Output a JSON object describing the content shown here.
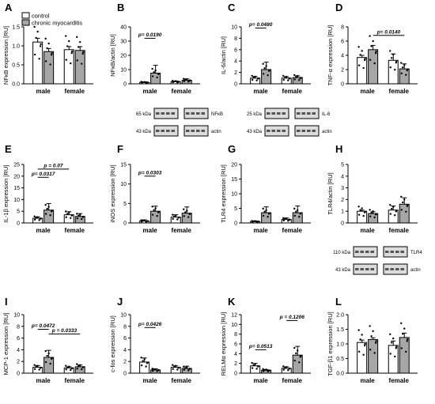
{
  "colors": {
    "control": "#ffffff",
    "myocarditis": "#a6a6a6",
    "stroke": "#000000",
    "blot_bg": "#dcdcdc",
    "blot_band": "#555555"
  },
  "legend": {
    "control": "control",
    "myocarditis": "chronic myocarditis"
  },
  "blot_labels": {
    "B": {
      "kda_top": "65 kDa",
      "kda_bottom": "43 kDa",
      "target": "NFκB",
      "loading": "actin"
    },
    "C": {
      "kda_top": "25 kDa",
      "kda_bottom": "43 kDa",
      "target": "IL-6",
      "loading": "actin"
    },
    "H": {
      "kda_top": "110 kDa",
      "kda_bottom": "43 kDa",
      "target": "TLR4",
      "loading": "actin"
    }
  },
  "chart_data": [
    {
      "panel": "A",
      "type": "bar",
      "ylabel": "NFκB expression [RU]",
      "ylim": [
        0,
        1.5
      ],
      "yticks": [
        "0.0",
        "0.5",
        "1.0",
        "1.5"
      ],
      "categories": [
        "male",
        "female"
      ],
      "series": [
        {
          "name": "control",
          "values": [
            1.1,
            0.9
          ],
          "errors": [
            0.1,
            0.08
          ]
        },
        {
          "name": "chronic myocarditis",
          "values": [
            0.85,
            0.88
          ],
          "errors": [
            0.08,
            0.1
          ]
        }
      ],
      "sig": []
    },
    {
      "panel": "B",
      "type": "bar",
      "ylabel": "NFκB/actin [RU]",
      "ylim": [
        0,
        40
      ],
      "yticks": [
        "0",
        "10",
        "20",
        "30",
        "40"
      ],
      "categories": [
        "male",
        "female"
      ],
      "series": [
        {
          "name": "control",
          "values": [
            1,
            1.5
          ],
          "errors": [
            0.4,
            0.5
          ]
        },
        {
          "name": "chronic myocarditis",
          "values": [
            7.5,
            2.5
          ],
          "errors": [
            5.5,
            1
          ]
        }
      ],
      "sig": [
        {
          "text": "p= 0.0190",
          "from": [
            0,
            0
          ],
          "to": [
            0,
            1
          ],
          "y": 32
        }
      ]
    },
    {
      "panel": "C",
      "type": "bar",
      "ylabel": "IL-6/actin [RU]",
      "ylim": [
        0,
        10
      ],
      "yticks": [
        "0",
        "2",
        "4",
        "6",
        "8",
        "10"
      ],
      "categories": [
        "male",
        "female"
      ],
      "series": [
        {
          "name": "control",
          "values": [
            1,
            1
          ],
          "errors": [
            0.3,
            0.25
          ]
        },
        {
          "name": "chronic myocarditis",
          "values": [
            2.5,
            1.1
          ],
          "errors": [
            1.3,
            0.3
          ]
        }
      ],
      "sig": [
        {
          "text": "p= 0.0480",
          "from": [
            0,
            0
          ],
          "to": [
            0,
            1
          ],
          "y": 9.8
        }
      ]
    },
    {
      "panel": "D",
      "type": "bar",
      "ylabel": "TNF-α expression [RU]",
      "ylim": [
        0,
        8
      ],
      "yticks": [
        "0",
        "2",
        "4",
        "6",
        "8"
      ],
      "categories": [
        "male",
        "female"
      ],
      "series": [
        {
          "name": "control",
          "values": [
            3.7,
            3.3
          ],
          "errors": [
            0.3,
            0.9
          ]
        },
        {
          "name": "chronic myocarditis",
          "values": [
            4.8,
            2.1
          ],
          "errors": [
            0.6,
            0.7
          ]
        }
      ],
      "sig": [
        {
          "text": "p= 0.0140",
          "from": [
            0,
            1
          ],
          "to": [
            1,
            1
          ],
          "y": 6.8
        }
      ]
    },
    {
      "panel": "E",
      "type": "bar",
      "ylabel": "IL-1β expression [RU]",
      "ylim": [
        0,
        25
      ],
      "yticks": [
        "0",
        "5",
        "10",
        "15",
        "20",
        "25"
      ],
      "categories": [
        "male",
        "female"
      ],
      "series": [
        {
          "name": "control",
          "values": [
            2,
            3.5
          ],
          "errors": [
            0.6,
            1.3
          ]
        },
        {
          "name": "chronic myocarditis",
          "values": [
            5.5,
            2.8
          ],
          "errors": [
            2.8,
            1.2
          ]
        }
      ],
      "sig": [
        {
          "text": "p= 0.0317",
          "from": [
            0,
            0
          ],
          "to": [
            0,
            1
          ],
          "y": 19.5
        },
        {
          "text": "p = 0.07",
          "from": [
            0,
            0
          ],
          "to": [
            1,
            0
          ],
          "y": 23
        }
      ]
    },
    {
      "panel": "F",
      "type": "bar",
      "ylabel": "iNOS expression [RU]",
      "ylim": [
        0,
        15
      ],
      "yticks": [
        "0",
        "5",
        "10",
        "15"
      ],
      "categories": [
        "male",
        "female"
      ],
      "series": [
        {
          "name": "control",
          "values": [
            0.5,
            1.5
          ],
          "errors": [
            0.3,
            0.6
          ]
        },
        {
          "name": "chronic myocarditis",
          "values": [
            3,
            2.5
          ],
          "errors": [
            1.3,
            1.6
          ]
        }
      ],
      "sig": [
        {
          "text": "p= 0.0303",
          "from": [
            0,
            0
          ],
          "to": [
            0,
            1
          ],
          "y": 12
        }
      ]
    },
    {
      "panel": "G",
      "type": "bar",
      "ylabel": "TLR4 expression [RU]",
      "ylim": [
        0,
        20
      ],
      "yticks": [
        "0",
        "5",
        "10",
        "15",
        "20"
      ],
      "categories": [
        "male",
        "female"
      ],
      "series": [
        {
          "name": "control",
          "values": [
            0.5,
            1.2
          ],
          "errors": [
            0.2,
            0.5
          ]
        },
        {
          "name": "chronic myocarditis",
          "values": [
            3.5,
            3.5
          ],
          "errors": [
            2,
            2.3
          ]
        }
      ],
      "sig": []
    },
    {
      "panel": "H",
      "type": "bar",
      "ylabel": "TLR4/actin [RU]",
      "ylim": [
        0,
        5
      ],
      "yticks": [
        "0",
        "1",
        "2",
        "3",
        "4",
        "5"
      ],
      "categories": [
        "male",
        "female"
      ],
      "series": [
        {
          "name": "control",
          "values": [
            1,
            1.1
          ],
          "errors": [
            0.1,
            0.35
          ]
        },
        {
          "name": "chronic myocarditis",
          "values": [
            0.8,
            1.6
          ],
          "errors": [
            0.15,
            0.55
          ]
        }
      ],
      "sig": []
    },
    {
      "panel": "I",
      "type": "bar",
      "ylabel": "MCP-1 expression [RU]",
      "ylim": [
        0,
        10
      ],
      "yticks": [
        "0",
        "2",
        "4",
        "6",
        "8",
        "10"
      ],
      "categories": [
        "male",
        "female"
      ],
      "series": [
        {
          "name": "control",
          "values": [
            1,
            0.9
          ],
          "errors": [
            0.3,
            0.2
          ]
        },
        {
          "name": "chronic myocarditis",
          "values": [
            2.7,
            1.1
          ],
          "errors": [
            1.2,
            0.3
          ]
        }
      ],
      "sig": [
        {
          "text": "p= 0.0472",
          "from": [
            0,
            0
          ],
          "to": [
            0,
            1
          ],
          "y": 7.5
        },
        {
          "text": "p = 0.0333",
          "from": [
            0,
            1
          ],
          "to": [
            1,
            1
          ],
          "y": 6.7
        }
      ]
    },
    {
      "panel": "J",
      "type": "bar",
      "ylabel": "c-fos expression [RU]",
      "ylim": [
        0,
        10
      ],
      "yticks": [
        "0",
        "2",
        "4",
        "6",
        "8",
        "10"
      ],
      "categories": [
        "male",
        "female"
      ],
      "series": [
        {
          "name": "control",
          "values": [
            1.9,
            1
          ],
          "errors": [
            0.7,
            0.25
          ]
        },
        {
          "name": "chronic myocarditis",
          "values": [
            0.55,
            0.8
          ],
          "errors": [
            0.2,
            0.4
          ]
        }
      ],
      "sig": [
        {
          "text": "p= 0.0426",
          "from": [
            0,
            0
          ],
          "to": [
            0,
            1
          ],
          "y": 7.8
        }
      ]
    },
    {
      "panel": "K",
      "type": "bar",
      "ylabel": "RELMα expression [RU]",
      "ylim": [
        0,
        12
      ],
      "yticks": [
        "0",
        "2",
        "4",
        "6",
        "8",
        "10",
        "12"
      ],
      "categories": [
        "male",
        "female"
      ],
      "series": [
        {
          "name": "control",
          "values": [
            1.5,
            1
          ],
          "errors": [
            0.5,
            0.3
          ]
        },
        {
          "name": "chronic myocarditis",
          "values": [
            0.6,
            3.7
          ],
          "errors": [
            0.1,
            1.8
          ]
        }
      ],
      "sig": [
        {
          "text": "p= 0.0513",
          "from": [
            0,
            0
          ],
          "to": [
            0,
            1
          ],
          "y": 4.8
        },
        {
          "text": "p = 0.1206",
          "from": [
            1,
            0
          ],
          "to": [
            1,
            1
          ],
          "y": 10.8
        }
      ]
    },
    {
      "panel": "L",
      "type": "bar",
      "ylabel": "TGF-β1 expression [RU]",
      "ylim": [
        0,
        2.0
      ],
      "yticks": [
        "0.0",
        "0.5",
        "1.0",
        "1.5",
        "2.0"
      ],
      "categories": [
        "male",
        "female"
      ],
      "series": [
        {
          "name": "control",
          "values": [
            1.05,
            0.95
          ],
          "errors": [
            0.08,
            0.15
          ]
        },
        {
          "name": "chronic myocarditis",
          "values": [
            1.15,
            1.22
          ],
          "errors": [
            0.06,
            0.15
          ]
        }
      ],
      "sig": []
    }
  ]
}
